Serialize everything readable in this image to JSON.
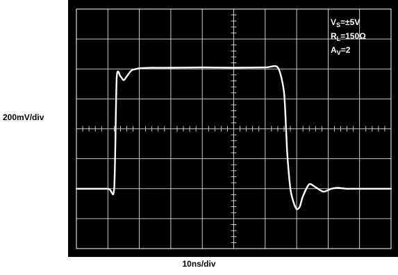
{
  "chart_data": {
    "type": "line",
    "title": "",
    "xlabel": "10ns/div",
    "ylabel": "200mV/div",
    "x_divisions": 10,
    "y_divisions": 8,
    "xlim": [
      0,
      10
    ],
    "ylim": [
      -4,
      4
    ],
    "grid": true,
    "conditions": [
      {
        "base": "V",
        "sub": "S",
        "rest": "=±5V"
      },
      {
        "base": "R",
        "sub": "L",
        "rest": "=150Ω"
      },
      {
        "base": "A",
        "sub": "V",
        "rest": "=2"
      }
    ],
    "series": [
      {
        "color": "#ffffff",
        "x": [
          0,
          1.0,
          1.2,
          1.28,
          1.4,
          1.5,
          1.6,
          1.75,
          1.9,
          2.1,
          2.4,
          3.0,
          4.0,
          5.0,
          6.0,
          6.4,
          6.6,
          6.7,
          6.8,
          6.9,
          7.0,
          7.1,
          7.2,
          7.4,
          7.6,
          7.85,
          8.1,
          8.3,
          8.6,
          9.0,
          9.5,
          10.0
        ],
        "y": [
          -2.0,
          -2.0,
          -1.99,
          1.7,
          1.75,
          1.62,
          1.75,
          1.95,
          2.0,
          2.03,
          2.04,
          2.04,
          2.05,
          2.04,
          2.05,
          2.05,
          1.2,
          -0.8,
          -2.0,
          -2.45,
          -2.68,
          -2.6,
          -2.25,
          -1.85,
          -1.95,
          -2.1,
          -2.0,
          -1.97,
          -2.0,
          -2.0,
          -2.0,
          -2.0
        ]
      }
    ]
  }
}
